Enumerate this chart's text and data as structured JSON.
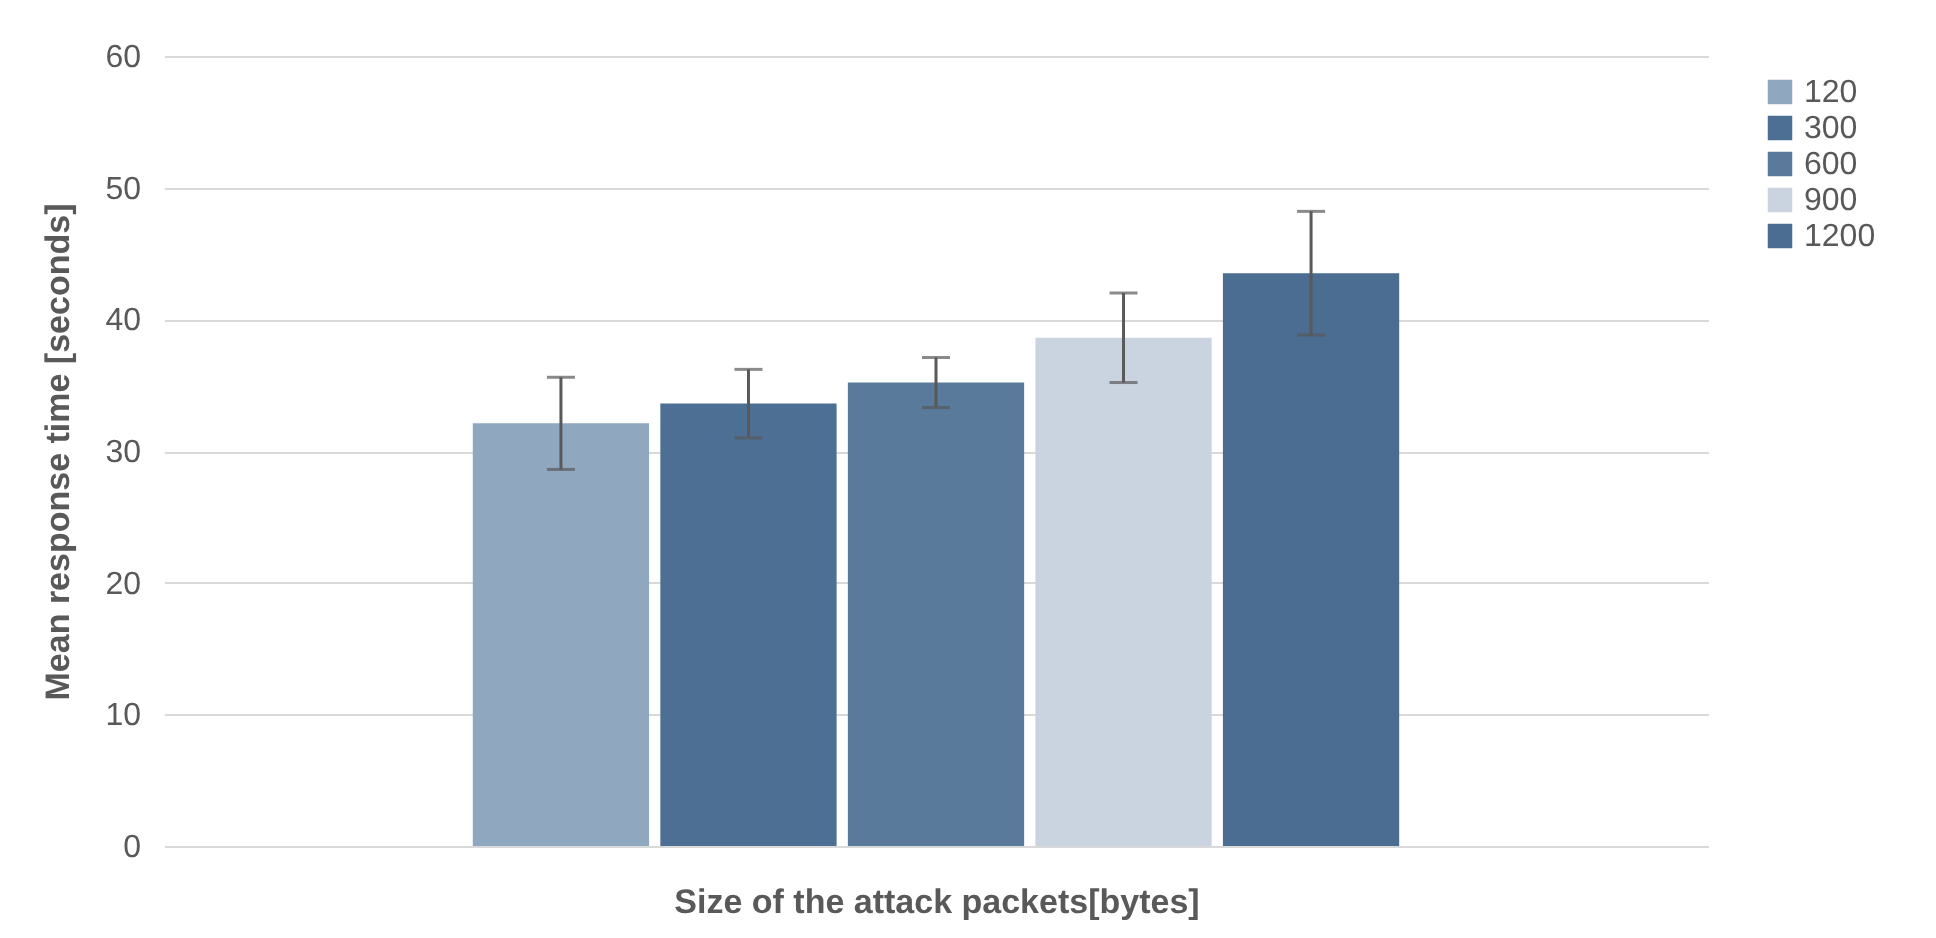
{
  "chart_data": {
    "type": "bar",
    "xlabel": "Size of the attack packets[bytes]",
    "ylabel": "Mean response time [seconds]",
    "categories": [
      null
    ],
    "series": [
      {
        "name": "120",
        "color": "#8fa7bf",
        "values": [
          32.1
        ],
        "errors": [
          3.5
        ]
      },
      {
        "name": "300",
        "color": "#4d6f93",
        "values": [
          33.6
        ],
        "errors": [
          2.6
        ]
      },
      {
        "name": "600",
        "color": "#5a7a9c",
        "values": [
          35.2
        ],
        "errors": [
          1.9
        ]
      },
      {
        "name": "900",
        "color": "#c9d4e0",
        "values": [
          38.6
        ],
        "errors": [
          3.4
        ]
      },
      {
        "name": "1200",
        "color": "#4a6d91",
        "values": [
          43.5
        ],
        "errors": [
          4.7
        ]
      }
    ],
    "ylim": [
      0,
      60
    ],
    "yticks": [
      0,
      10,
      20,
      30,
      40,
      50,
      60
    ],
    "grid": "y",
    "legend": "right",
    "tick_labels": "y"
  }
}
